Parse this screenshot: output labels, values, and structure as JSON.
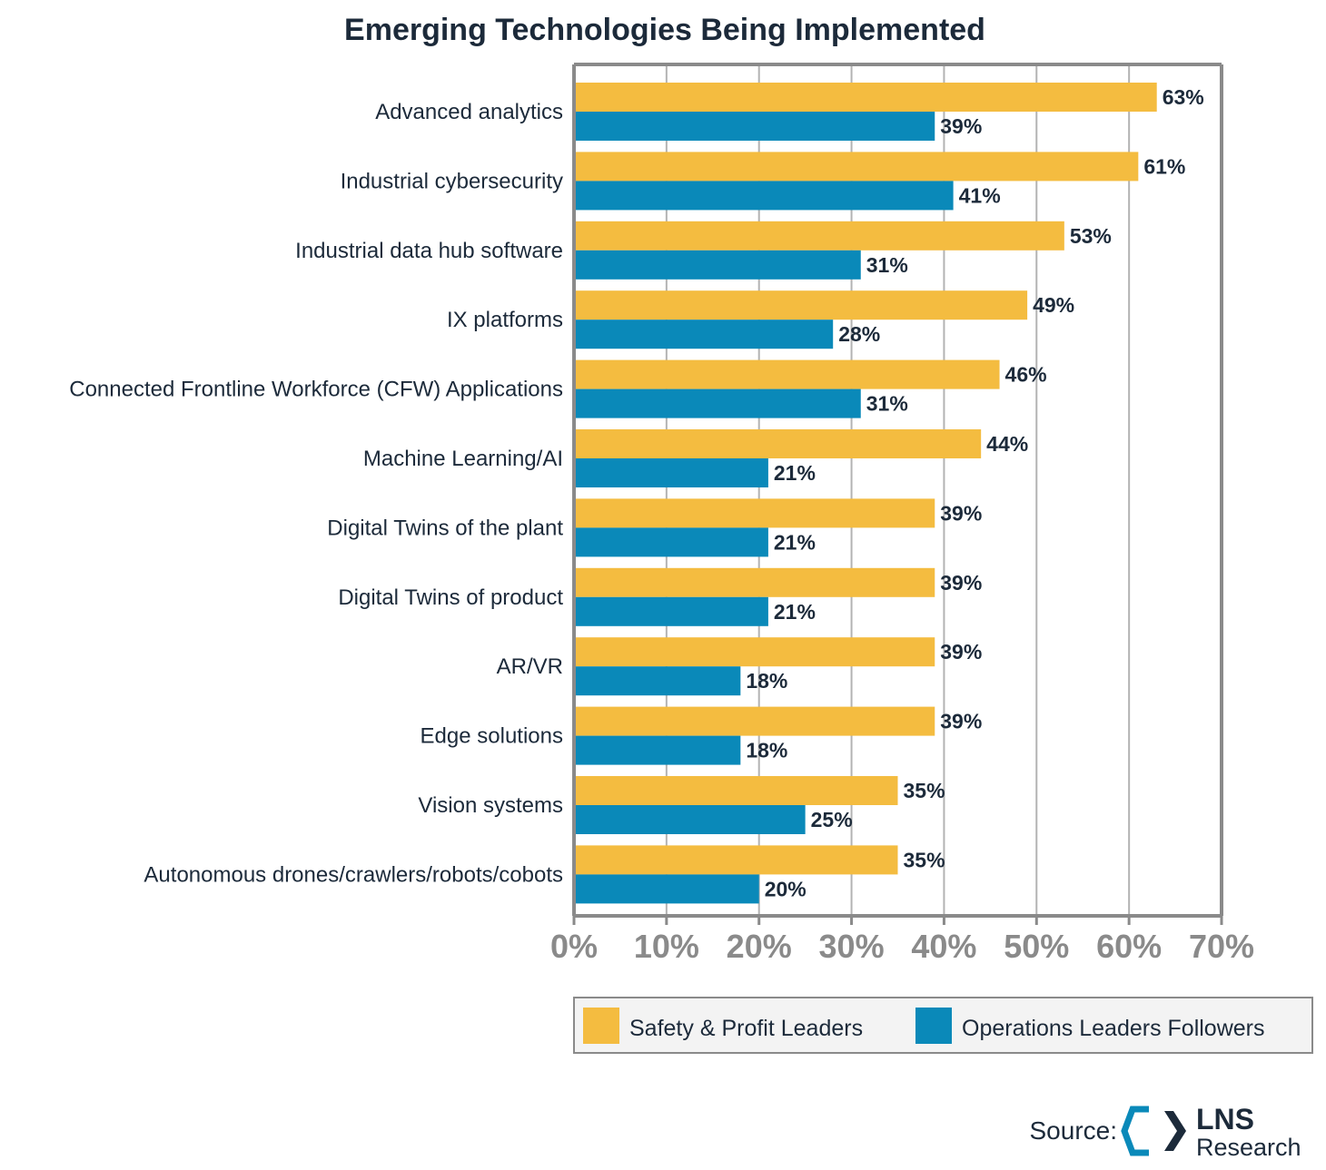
{
  "chart_data": {
    "type": "bar",
    "orientation": "horizontal",
    "title": "Emerging Technologies Being Implemented",
    "categories": [
      "Advanced analytics",
      "Industrial cybersecurity",
      "Industrial data hub software",
      "IX platforms",
      "Connected Frontline Workforce (CFW) Applications",
      "Machine Learning/AI",
      "Digital Twins of the plant",
      "Digital Twins of product",
      "AR/VR",
      "Edge solutions",
      "Vision systems",
      "Autonomous drones/crawlers/robots/cobots"
    ],
    "series": [
      {
        "name": "Safety & Profit Leaders",
        "color": "#f4bc40",
        "values": [
          63,
          61,
          53,
          49,
          46,
          44,
          39,
          39,
          39,
          39,
          35,
          35
        ],
        "labels": [
          "63%",
          "61%",
          "53%",
          "49%",
          "46%",
          "44%",
          "39%",
          "39%",
          "39%",
          "39%",
          "35%",
          "35%"
        ]
      },
      {
        "name": "Operations Leaders Followers",
        "color": "#0a89b9",
        "values": [
          39,
          41,
          31,
          28,
          31,
          21,
          21,
          21,
          18,
          18,
          25,
          20
        ],
        "labels": [
          "39%",
          "41%",
          "31%",
          "28%",
          "31%",
          "21%",
          "21%",
          "21%",
          "18%",
          "18%",
          "25%",
          "20%"
        ]
      }
    ],
    "xlim": [
      0,
      70
    ],
    "xticks": [
      "0%",
      "10%",
      "20%",
      "30%",
      "40%",
      "50%",
      "60%",
      "70%"
    ],
    "grid": true,
    "legend_position": "bottom-right"
  },
  "source": {
    "label": "Source:",
    "logo_line1": "LNS",
    "logo_line2": "Research"
  }
}
